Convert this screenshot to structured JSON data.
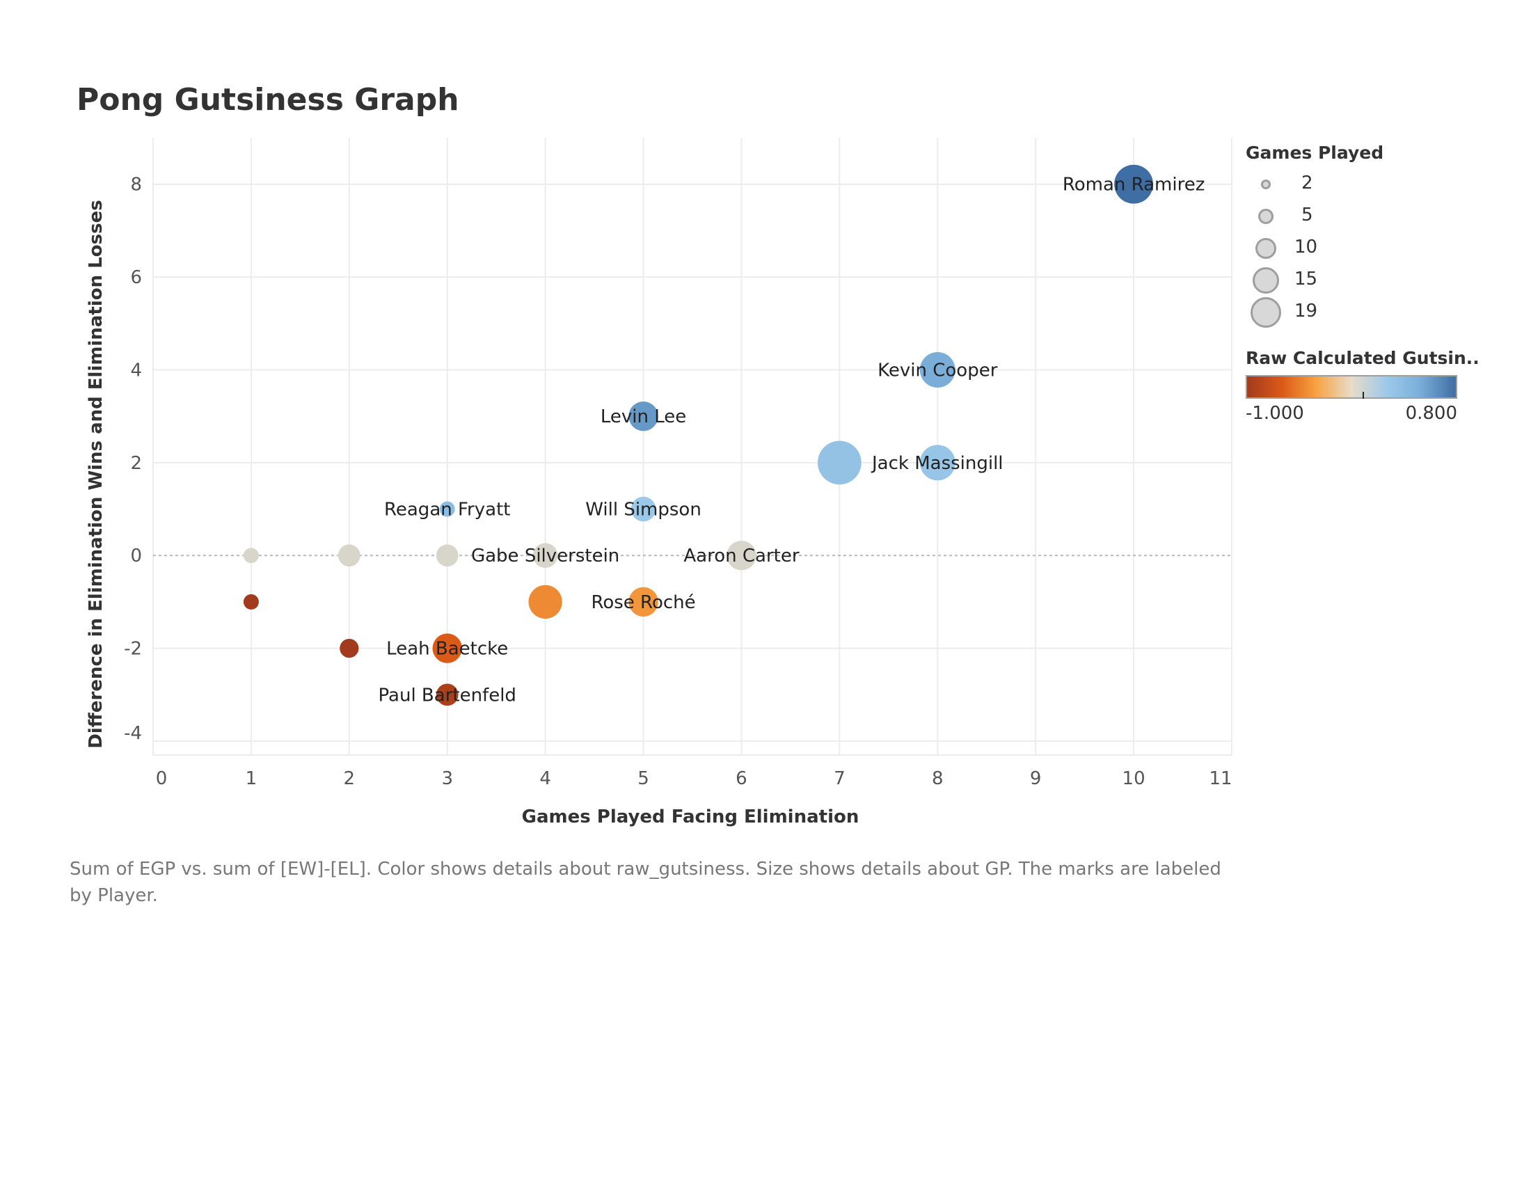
{
  "title": "Pong Gutsiness Graph",
  "caption": "Sum of EGP vs. sum of [EW]-[EL].  Color shows details about raw_gutsiness.  Size shows details about GP.  The marks are labeled by Player.",
  "colors": {
    "ramp": [
      "#a23b1e",
      "#dc5a18",
      "#f7a242",
      "#e8dcc8",
      "#9cc9ea",
      "#7aaed8",
      "#3e6ea3"
    ],
    "neutral": "#d8d6cb",
    "grid": "#ececec",
    "zero_line": "#b8b8b8"
  },
  "legend": {
    "size_title": "Games Played",
    "size_items": [
      "2",
      "5",
      "10",
      "15",
      "19"
    ],
    "color_title": "Raw Calculated Gutsin..",
    "color_min": "-1.000",
    "color_max": "0.800"
  },
  "chart_data": {
    "type": "scatter",
    "title": "Pong Gutsiness Graph",
    "xlabel": "Games Played Facing Elimination",
    "ylabel": "Difference in Elimination Wins and Elimination Losses",
    "xlim": [
      0,
      11
    ],
    "ylim": [
      -4.3,
      9
    ],
    "x_ticks": [
      0,
      1,
      2,
      3,
      4,
      5,
      6,
      7,
      8,
      9,
      10,
      11
    ],
    "y_ticks": [
      -4,
      -2,
      0,
      2,
      4,
      6,
      8
    ],
    "grid": true,
    "size_field": "Games Played",
    "color_field": "Raw Calculated Gutsiness",
    "color_range": [
      -1.0,
      0.8
    ],
    "points": [
      {
        "label": "Roman Ramirez",
        "x": 10,
        "y": 8,
        "size": 12,
        "color": 0.8
      },
      {
        "label": "Kevin Cooper",
        "x": 8,
        "y": 4,
        "size": 10,
        "color": 0.5
      },
      {
        "label": "Levin Lee",
        "x": 5,
        "y": 3,
        "size": 7,
        "color": 0.6
      },
      {
        "label": "",
        "x": 7,
        "y": 2,
        "size": 15,
        "color": 0.28
      },
      {
        "label": "Jack Massingill",
        "x": 8,
        "y": 2,
        "size": 10,
        "color": 0.25
      },
      {
        "label": "Reagan Fryatt",
        "x": 3,
        "y": 1,
        "size": 2,
        "color": 0.33
      },
      {
        "label": "Will Simpson",
        "x": 5,
        "y": 1,
        "size": 5,
        "color": 0.2
      },
      {
        "label": "",
        "x": 1,
        "y": 0,
        "size": 2,
        "color": 0.0
      },
      {
        "label": "",
        "x": 2,
        "y": 0,
        "size": 4,
        "color": 0.0
      },
      {
        "label": "",
        "x": 3,
        "y": 0,
        "size": 4,
        "color": 0.0
      },
      {
        "label": "Gabe Silverstein",
        "x": 4,
        "y": 0,
        "size": 5,
        "color": 0.0
      },
      {
        "label": "Aaron Carter",
        "x": 6,
        "y": 0,
        "size": 7,
        "color": 0.0
      },
      {
        "label": "",
        "x": 1,
        "y": -1,
        "size": 2,
        "color": -1.0
      },
      {
        "label": "",
        "x": 4,
        "y": -1,
        "size": 9,
        "color": -0.5
      },
      {
        "label": "Rose Roché",
        "x": 5,
        "y": -1,
        "size": 7,
        "color": -0.45
      },
      {
        "label": "",
        "x": 2,
        "y": -2,
        "size": 3,
        "color": -1.0
      },
      {
        "label": "Leah Baetcke",
        "x": 3,
        "y": -2,
        "size": 7,
        "color": -0.7
      },
      {
        "label": "Paul Bartenfeld",
        "x": 3,
        "y": -3,
        "size": 4,
        "color": -0.95
      }
    ]
  }
}
